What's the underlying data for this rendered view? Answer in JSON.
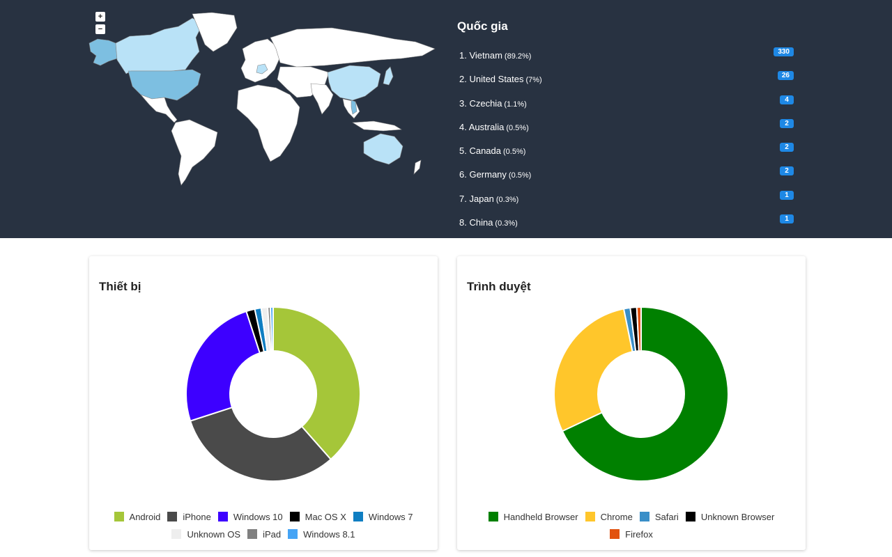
{
  "map": {
    "zoom_in_label": "+",
    "zoom_out_label": "−"
  },
  "countries": {
    "title": "Quốc gia",
    "items": [
      {
        "name": "1. Vietnam",
        "pct": "(89.2%)",
        "count": "330"
      },
      {
        "name": "2. United States",
        "pct": "(7%)",
        "count": "26"
      },
      {
        "name": "3. Czechia",
        "pct": "(1.1%)",
        "count": "4"
      },
      {
        "name": "4. Australia",
        "pct": "(0.5%)",
        "count": "2"
      },
      {
        "name": "5. Canada",
        "pct": "(0.5%)",
        "count": "2"
      },
      {
        "name": "6. Germany",
        "pct": "(0.5%)",
        "count": "2"
      },
      {
        "name": "7. Japan",
        "pct": "(0.3%)",
        "count": "1"
      },
      {
        "name": "8. China",
        "pct": "(0.3%)",
        "count": "1"
      }
    ]
  },
  "chart_data": [
    {
      "type": "pie",
      "title": "Thiết bị",
      "donut": true,
      "categories": [
        "Android",
        "iPhone",
        "Windows 10",
        "Mac OS X",
        "Windows 7",
        "Unknown OS",
        "iPad",
        "Windows 8.1"
      ],
      "values": [
        38.5,
        31.5,
        25.0,
        1.6,
        1.2,
        1.2,
        0.5,
        0.5
      ],
      "colors": [
        "#a5c639",
        "#4a4a4a",
        "#3d00ff",
        "#000000",
        "#0f7ec2",
        "#eeeeee",
        "#808080",
        "#45a4f5"
      ],
      "legend": "bottom"
    },
    {
      "type": "pie",
      "title": "Trình duyệt",
      "donut": true,
      "categories": [
        "Handheld Browser",
        "Chrome",
        "Safari",
        "Unknown Browser",
        "Firefox"
      ],
      "values": [
        68.0,
        28.8,
        1.2,
        1.2,
        0.8
      ],
      "colors": [
        "#008000",
        "#ffc62b",
        "#3a8fc8",
        "#000000",
        "#e2520e"
      ],
      "legend": "bottom"
    }
  ],
  "colors": {
    "header_bg": "#283241",
    "badge": "#1e88e5",
    "map_land": "#ffffff",
    "map_light": "#b9e2f7",
    "map_medium": "#7dbfe1"
  }
}
